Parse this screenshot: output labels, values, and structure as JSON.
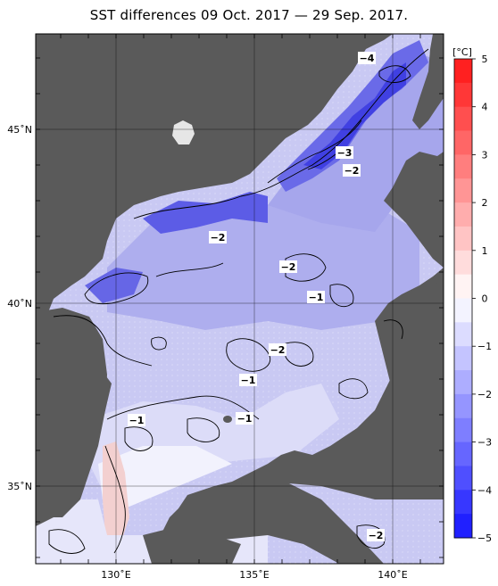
{
  "title": "SST differences 09 Oct. 2017 — 29 Sep. 2017.",
  "colorbar": {
    "unit": "[°C]",
    "ticks": [
      "5",
      "4",
      "3",
      "2",
      "1",
      "0",
      "−1",
      "−2",
      "−3",
      "−4",
      "−5"
    ]
  },
  "axes": {
    "lat_labels": [
      "45˚N",
      "40˚N",
      "35˚N"
    ],
    "lon_labels": [
      "130˚E",
      "135˚E",
      "140˚E"
    ]
  },
  "contour_labels": [
    "−4",
    "−3",
    "−2",
    "−2",
    "−2",
    "−1",
    "−2",
    "−1",
    "−1",
    "−1",
    "−1",
    "−2"
  ],
  "colors": {
    "land": "#5a5a5a",
    "sea_base": "#c6c6f2",
    "strong_cool": "#3f3fe6",
    "warm": "#f6c8c8"
  }
}
